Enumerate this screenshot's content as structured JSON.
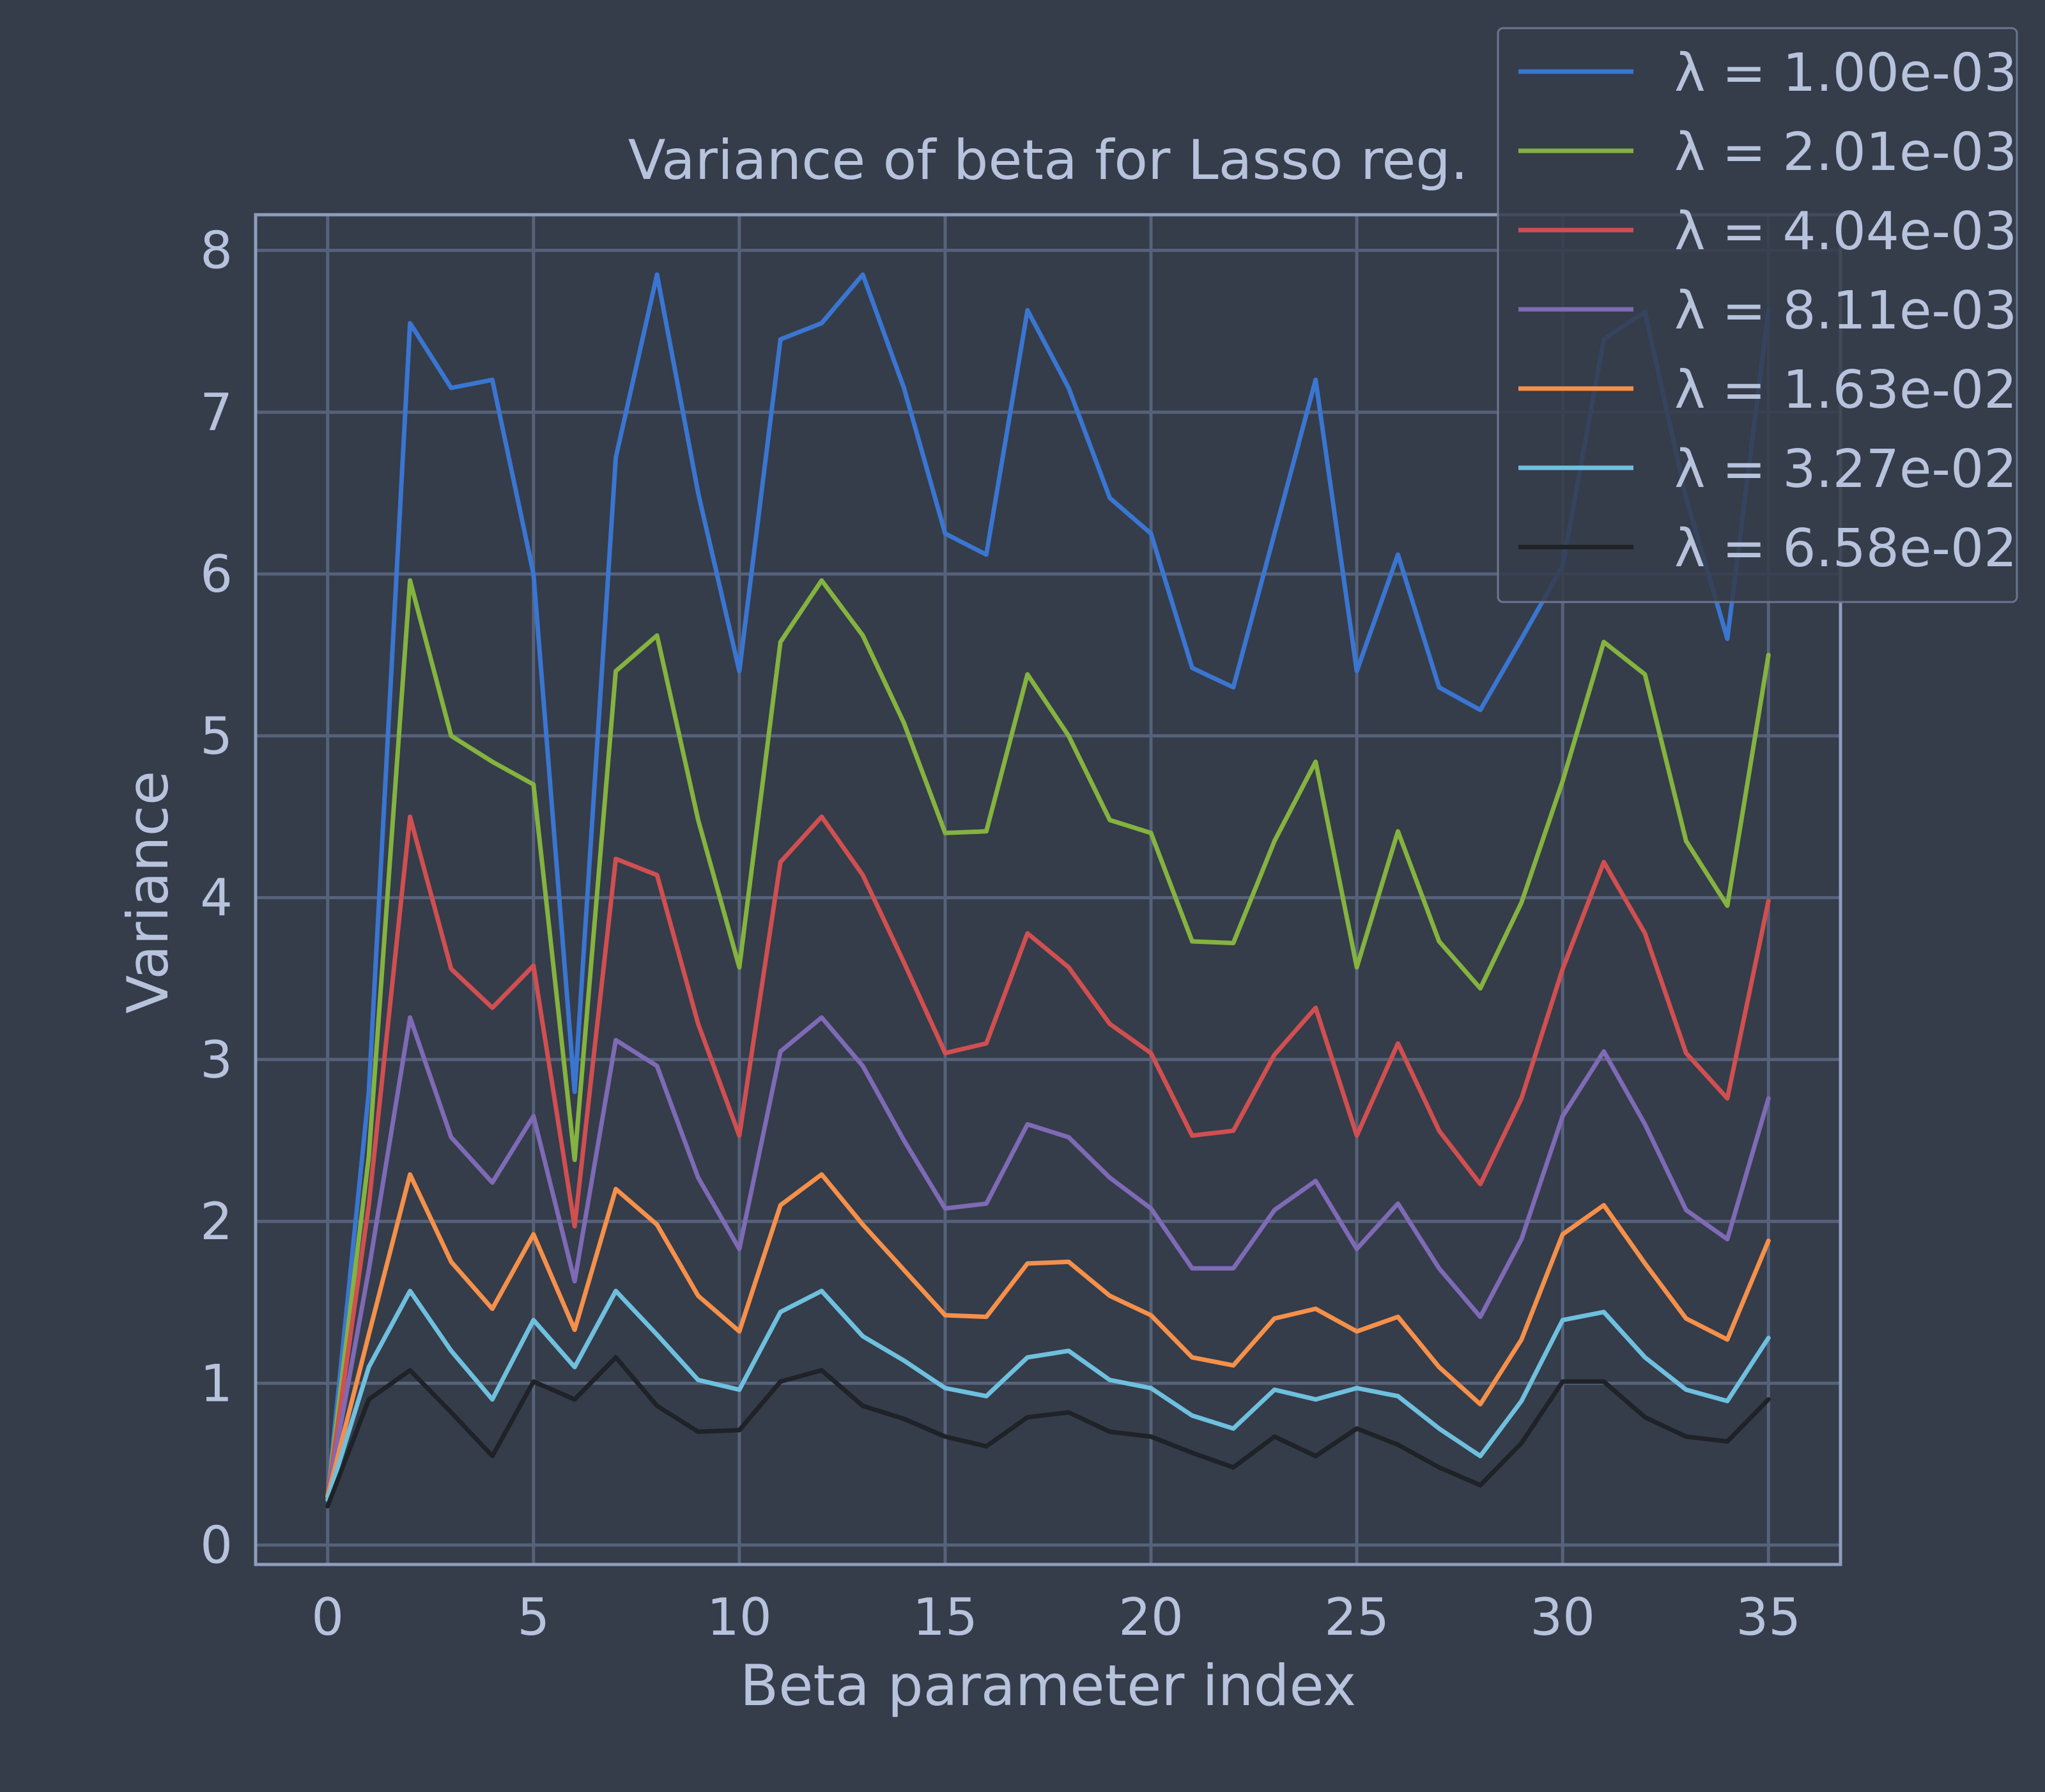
{
  "colors": {
    "background": "#353c4a",
    "grid": "#56627a",
    "frame": "#8f9dbc",
    "text": "#b7c3dc",
    "legend_bg": "#353c4a",
    "legend_border": "#6a7590"
  },
  "chart_data": {
    "type": "line",
    "title": "Variance of beta for Lasso reg.",
    "xlabel": "Beta parameter index",
    "ylabel": "Variance",
    "xlim": [
      -1.75,
      36.75
    ],
    "ylim": [
      -0.12,
      8.22
    ],
    "xticks": [
      0,
      5,
      10,
      15,
      20,
      25,
      30,
      35
    ],
    "yticks": [
      0,
      1,
      2,
      3,
      4,
      5,
      6,
      7,
      8
    ],
    "grid": true,
    "legend_position": "top-right",
    "x": [
      0,
      1,
      2,
      3,
      4,
      5,
      6,
      7,
      8,
      9,
      10,
      11,
      12,
      13,
      14,
      15,
      16,
      17,
      18,
      19,
      20,
      21,
      22,
      23,
      24,
      25,
      26,
      27,
      28,
      29,
      30,
      31,
      32,
      33,
      34,
      35
    ],
    "series": [
      {
        "name": "λ = 1.00e-03",
        "color": "#3a76d1",
        "values": [
          0.3,
          2.8,
          7.55,
          7.15,
          7.2,
          6.0,
          2.8,
          6.72,
          7.85,
          6.5,
          5.4,
          7.45,
          7.55,
          7.85,
          7.15,
          6.25,
          6.12,
          7.63,
          7.15,
          6.47,
          6.25,
          5.42,
          5.3,
          6.25,
          7.2,
          5.4,
          6.12,
          5.3,
          5.16,
          5.6,
          6.05,
          7.45,
          7.62,
          6.47,
          5.6,
          7.63
        ]
      },
      {
        "name": "λ = 2.01e-03",
        "color": "#84b33f",
        "values": [
          0.3,
          2.4,
          5.96,
          5.0,
          4.84,
          4.7,
          2.38,
          5.4,
          5.62,
          4.48,
          3.57,
          5.58,
          5.96,
          5.62,
          5.08,
          4.4,
          4.41,
          5.38,
          5.0,
          4.48,
          4.4,
          3.73,
          3.72,
          4.35,
          4.84,
          3.57,
          4.41,
          3.73,
          3.44,
          3.97,
          4.72,
          5.58,
          5.38,
          4.35,
          3.95,
          5.5
        ]
      },
      {
        "name": "λ = 4.04e-03",
        "color": "#d04f50",
        "values": [
          0.3,
          2.1,
          4.5,
          3.56,
          3.32,
          3.58,
          1.97,
          4.24,
          4.14,
          3.22,
          2.53,
          4.22,
          4.5,
          4.14,
          3.6,
          3.04,
          3.1,
          3.78,
          3.57,
          3.22,
          3.04,
          2.53,
          2.56,
          3.03,
          3.32,
          2.53,
          3.1,
          2.56,
          2.23,
          2.76,
          3.56,
          4.22,
          3.78,
          3.04,
          2.76,
          3.98
        ]
      },
      {
        "name": "λ = 8.11e-03",
        "color": "#7e6ab5",
        "values": [
          0.3,
          1.7,
          3.26,
          2.52,
          2.24,
          2.65,
          1.63,
          3.12,
          2.96,
          2.27,
          1.83,
          3.05,
          3.26,
          2.96,
          2.5,
          2.08,
          2.11,
          2.6,
          2.52,
          2.27,
          2.08,
          1.71,
          1.71,
          2.07,
          2.25,
          1.83,
          2.11,
          1.71,
          1.41,
          1.89,
          2.65,
          3.05,
          2.6,
          2.07,
          1.89,
          2.76
        ]
      },
      {
        "name": "λ = 1.63e-02",
        "color": "#f5904a",
        "values": [
          0.3,
          1.3,
          2.29,
          1.75,
          1.46,
          1.92,
          1.33,
          2.2,
          1.98,
          1.54,
          1.32,
          2.1,
          2.29,
          1.98,
          1.7,
          1.42,
          1.41,
          1.74,
          1.75,
          1.54,
          1.42,
          1.16,
          1.11,
          1.4,
          1.46,
          1.32,
          1.41,
          1.1,
          0.87,
          1.27,
          1.92,
          2.1,
          1.74,
          1.4,
          1.27,
          1.88
        ]
      },
      {
        "name": "λ = 3.27e-02",
        "color": "#6ec0de",
        "values": [
          0.28,
          1.1,
          1.57,
          1.2,
          0.9,
          1.39,
          1.1,
          1.57,
          1.3,
          1.02,
          0.96,
          1.44,
          1.57,
          1.29,
          1.14,
          0.97,
          0.92,
          1.16,
          1.2,
          1.02,
          0.97,
          0.8,
          0.72,
          0.96,
          0.9,
          0.97,
          0.92,
          0.72,
          0.55,
          0.89,
          1.39,
          1.44,
          1.16,
          0.96,
          0.89,
          1.28
        ]
      },
      {
        "name": "λ = 6.58e-02",
        "color": "#1f2227",
        "values": [
          0.24,
          0.9,
          1.08,
          0.82,
          0.55,
          1.01,
          0.9,
          1.16,
          0.86,
          0.7,
          0.71,
          1.01,
          1.08,
          0.86,
          0.78,
          0.67,
          0.61,
          0.79,
          0.82,
          0.7,
          0.67,
          0.57,
          0.48,
          0.67,
          0.55,
          0.72,
          0.62,
          0.48,
          0.37,
          0.63,
          1.01,
          1.01,
          0.79,
          0.67,
          0.64,
          0.9
        ]
      }
    ]
  }
}
